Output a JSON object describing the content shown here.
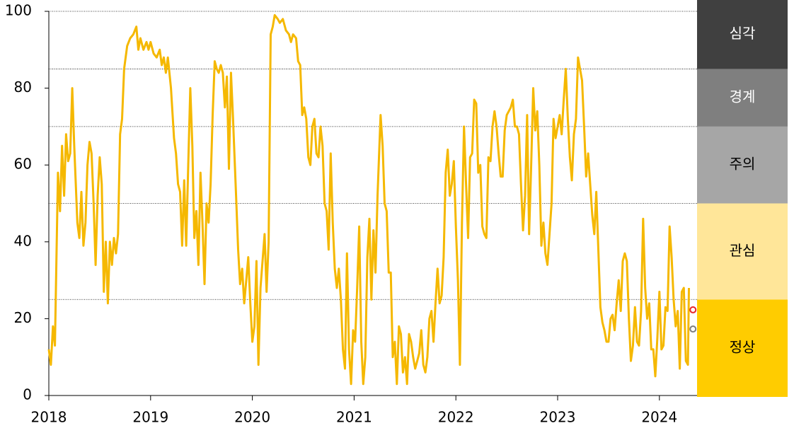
{
  "chart_data": {
    "type": "line",
    "xlim": [
      2018,
      2024.37
    ],
    "xticks": [
      2018,
      2019,
      2020,
      2021,
      2022,
      2023,
      2024
    ],
    "ylim": [
      0,
      100
    ],
    "yticks": [
      0,
      20,
      40,
      60,
      80,
      100
    ],
    "series": [
      {
        "color": "#f5b800",
        "x": [
          2018.0,
          2018.02,
          2018.04,
          2018.06,
          2018.09,
          2018.11,
          2018.13,
          2018.15,
          2018.17,
          2018.19,
          2018.21,
          2018.23,
          2018.25,
          2018.28,
          2018.3,
          2018.32,
          2018.34,
          2018.36,
          2018.38,
          2018.4,
          2018.42,
          2018.44,
          2018.46,
          2018.48,
          2018.5,
          2018.52,
          2018.54,
          2018.56,
          2018.58,
          2018.6,
          2018.62,
          2018.64,
          2018.66,
          2018.68,
          2018.7,
          2018.72,
          2018.74,
          2018.77,
          2018.8,
          2018.83,
          2018.86,
          2018.88,
          2018.9,
          2018.93,
          2018.96,
          2018.98,
          2019.0,
          2019.03,
          2019.06,
          2019.09,
          2019.11,
          2019.13,
          2019.15,
          2019.17,
          2019.2,
          2019.23,
          2019.25,
          2019.27,
          2019.29,
          2019.31,
          2019.33,
          2019.35,
          2019.37,
          2019.39,
          2019.41,
          2019.43,
          2019.45,
          2019.47,
          2019.49,
          2019.51,
          2019.53,
          2019.55,
          2019.57,
          2019.59,
          2019.61,
          2019.63,
          2019.65,
          2019.67,
          2019.69,
          2019.71,
          2019.73,
          2019.75,
          2019.77,
          2019.79,
          2019.81,
          2019.84,
          2019.86,
          2019.88,
          2019.9,
          2019.92,
          2019.94,
          2019.96,
          2019.98,
          2020.0,
          2020.02,
          2020.04,
          2020.06,
          2020.08,
          2020.1,
          2020.12,
          2020.14,
          2020.16,
          2020.18,
          2020.2,
          2020.22,
          2020.25,
          2020.27,
          2020.3,
          2020.33,
          2020.36,
          2020.38,
          2020.4,
          2020.43,
          2020.45,
          2020.47,
          2020.49,
          2020.51,
          2020.53,
          2020.55,
          2020.57,
          2020.59,
          2020.61,
          2020.63,
          2020.65,
          2020.67,
          2020.69,
          2020.71,
          2020.73,
          2020.75,
          2020.77,
          2020.79,
          2020.81,
          2020.83,
          2020.85,
          2020.87,
          2020.89,
          2020.91,
          2020.93,
          2020.95,
          2020.97,
          2020.99,
          2021.01,
          2021.03,
          2021.05,
          2021.07,
          2021.09,
          2021.11,
          2021.13,
          2021.15,
          2021.17,
          2021.19,
          2021.21,
          2021.23,
          2021.26,
          2021.28,
          2021.3,
          2021.32,
          2021.34,
          2021.36,
          2021.38,
          2021.4,
          2021.42,
          2021.44,
          2021.46,
          2021.48,
          2021.5,
          2021.52,
          2021.54,
          2021.56,
          2021.58,
          2021.6,
          2021.62,
          2021.64,
          2021.66,
          2021.68,
          2021.7,
          2021.72,
          2021.74,
          2021.76,
          2021.78,
          2021.8,
          2021.82,
          2021.84,
          2021.86,
          2021.88,
          2021.9,
          2021.92,
          2021.94,
          2021.96,
          2021.98,
          2022.0,
          2022.02,
          2022.04,
          2022.06,
          2022.08,
          2022.1,
          2022.12,
          2022.14,
          2022.16,
          2022.18,
          2022.2,
          2022.22,
          2022.24,
          2022.26,
          2022.28,
          2022.3,
          2022.32,
          2022.34,
          2022.36,
          2022.38,
          2022.4,
          2022.42,
          2022.44,
          2022.46,
          2022.48,
          2022.5,
          2022.52,
          2022.54,
          2022.56,
          2022.58,
          2022.6,
          2022.62,
          2022.64,
          2022.66,
          2022.68,
          2022.7,
          2022.72,
          2022.74,
          2022.76,
          2022.78,
          2022.8,
          2022.82,
          2022.84,
          2022.86,
          2022.88,
          2022.9,
          2022.92,
          2022.94,
          2022.96,
          2022.98,
          2023.0,
          2023.02,
          2023.04,
          2023.06,
          2023.08,
          2023.1,
          2023.12,
          2023.14,
          2023.16,
          2023.18,
          2023.2,
          2023.22,
          2023.24,
          2023.26,
          2023.28,
          2023.3,
          2023.32,
          2023.34,
          2023.36,
          2023.38,
          2023.4,
          2023.42,
          2023.44,
          2023.46,
          2023.48,
          2023.5,
          2023.52,
          2023.54,
          2023.56,
          2023.58,
          2023.6,
          2023.62,
          2023.64,
          2023.66,
          2023.68,
          2023.7,
          2023.72,
          2023.74,
          2023.76,
          2023.78,
          2023.8,
          2023.82,
          2023.84,
          2023.86,
          2023.88,
          2023.9,
          2023.92,
          2023.94,
          2023.96,
          2023.98,
          2024.0,
          2024.02,
          2024.04,
          2024.06,
          2024.08,
          2024.1,
          2024.12,
          2024.14,
          2024.16,
          2024.18,
          2024.2,
          2024.22,
          2024.24,
          2024.26,
          2024.28,
          2024.29
        ],
        "values": [
          12,
          8,
          18,
          13,
          58,
          48,
          65,
          52,
          68,
          61,
          63,
          80,
          65,
          45,
          41,
          53,
          39,
          45,
          60,
          66,
          63,
          50,
          34,
          52,
          62,
          55,
          27,
          40,
          24,
          40,
          34,
          41,
          37,
          42,
          68,
          72,
          85,
          91,
          93,
          94,
          96,
          90,
          93,
          90,
          92,
          90,
          92,
          89,
          88,
          90,
          86,
          88,
          84,
          88,
          80,
          67,
          63,
          55,
          53,
          39,
          56,
          39,
          60,
          80,
          65,
          41,
          48,
          34,
          58,
          45,
          29,
          50,
          45,
          55,
          73,
          87,
          85,
          84,
          86,
          84,
          75,
          83,
          59,
          84,
          72,
          52,
          38,
          29,
          33,
          24,
          30,
          36,
          24,
          14,
          18,
          35,
          8,
          28,
          35,
          42,
          27,
          40,
          94,
          96,
          99,
          98,
          97,
          98,
          95,
          94,
          92,
          94,
          93,
          87,
          86,
          73,
          75,
          72,
          62,
          60,
          70,
          72,
          63,
          62,
          70,
          65,
          50,
          48,
          38,
          63,
          45,
          33,
          28,
          33,
          25,
          12,
          7,
          37,
          12,
          3,
          17,
          14,
          28,
          44,
          14,
          3,
          10,
          36,
          46,
          25,
          43,
          32,
          52,
          73,
          65,
          50,
          48,
          32,
          32,
          10,
          14,
          3,
          18,
          16,
          6,
          10,
          3,
          16,
          14,
          10,
          7,
          9,
          11,
          17,
          8,
          6,
          10,
          20,
          22,
          14,
          24,
          33,
          24,
          26,
          36,
          58,
          64,
          52,
          55,
          61,
          44,
          30,
          8,
          45,
          70,
          55,
          41,
          62,
          63,
          77,
          76,
          58,
          60,
          44,
          42,
          41,
          62,
          61,
          70,
          74,
          70,
          63,
          57,
          57,
          69,
          73,
          74,
          75,
          77,
          70,
          70,
          68,
          55,
          43,
          52,
          73,
          42,
          60,
          80,
          69,
          74,
          60,
          39,
          45,
          37,
          34,
          42,
          50,
          72,
          67,
          70,
          73,
          68,
          77,
          85,
          72,
          62,
          56,
          68,
          72,
          88,
          85,
          82,
          70,
          57,
          63,
          55,
          47,
          42,
          53,
          38,
          23,
          19,
          17,
          14,
          14,
          20,
          21,
          17,
          24,
          30,
          22,
          35,
          37,
          35,
          20,
          9,
          13,
          23,
          14,
          13,
          22,
          46,
          28,
          20,
          24,
          12,
          12,
          5,
          15,
          27,
          12,
          13,
          23,
          22,
          44,
          36,
          25,
          18,
          22,
          7,
          27,
          28,
          9,
          8,
          28
        ]
      }
    ],
    "points": [
      {
        "x": 2024.33,
        "y": 22.3,
        "color": "#e8272a"
      },
      {
        "x": 2024.33,
        "y": 17.3,
        "color": "#7f7f7f"
      }
    ],
    "bands": [
      {
        "label": "정상",
        "from": 0,
        "to": 25,
        "color": "#ffcc00",
        "text_color": "#000000"
      },
      {
        "label": "관심",
        "from": 25,
        "to": 50,
        "color": "#ffe699",
        "text_color": "#000000"
      },
      {
        "label": "주의",
        "from": 50,
        "to": 70,
        "color": "#a6a6a6",
        "text_color": "#000000"
      },
      {
        "label": "경계",
        "from": 70,
        "to": 85,
        "color": "#7f7f7f",
        "text_color": "#ffffff"
      },
      {
        "label": "심각",
        "from": 85,
        "to": 100,
        "color": "#404040",
        "text_color": "#ffffff"
      }
    ]
  }
}
